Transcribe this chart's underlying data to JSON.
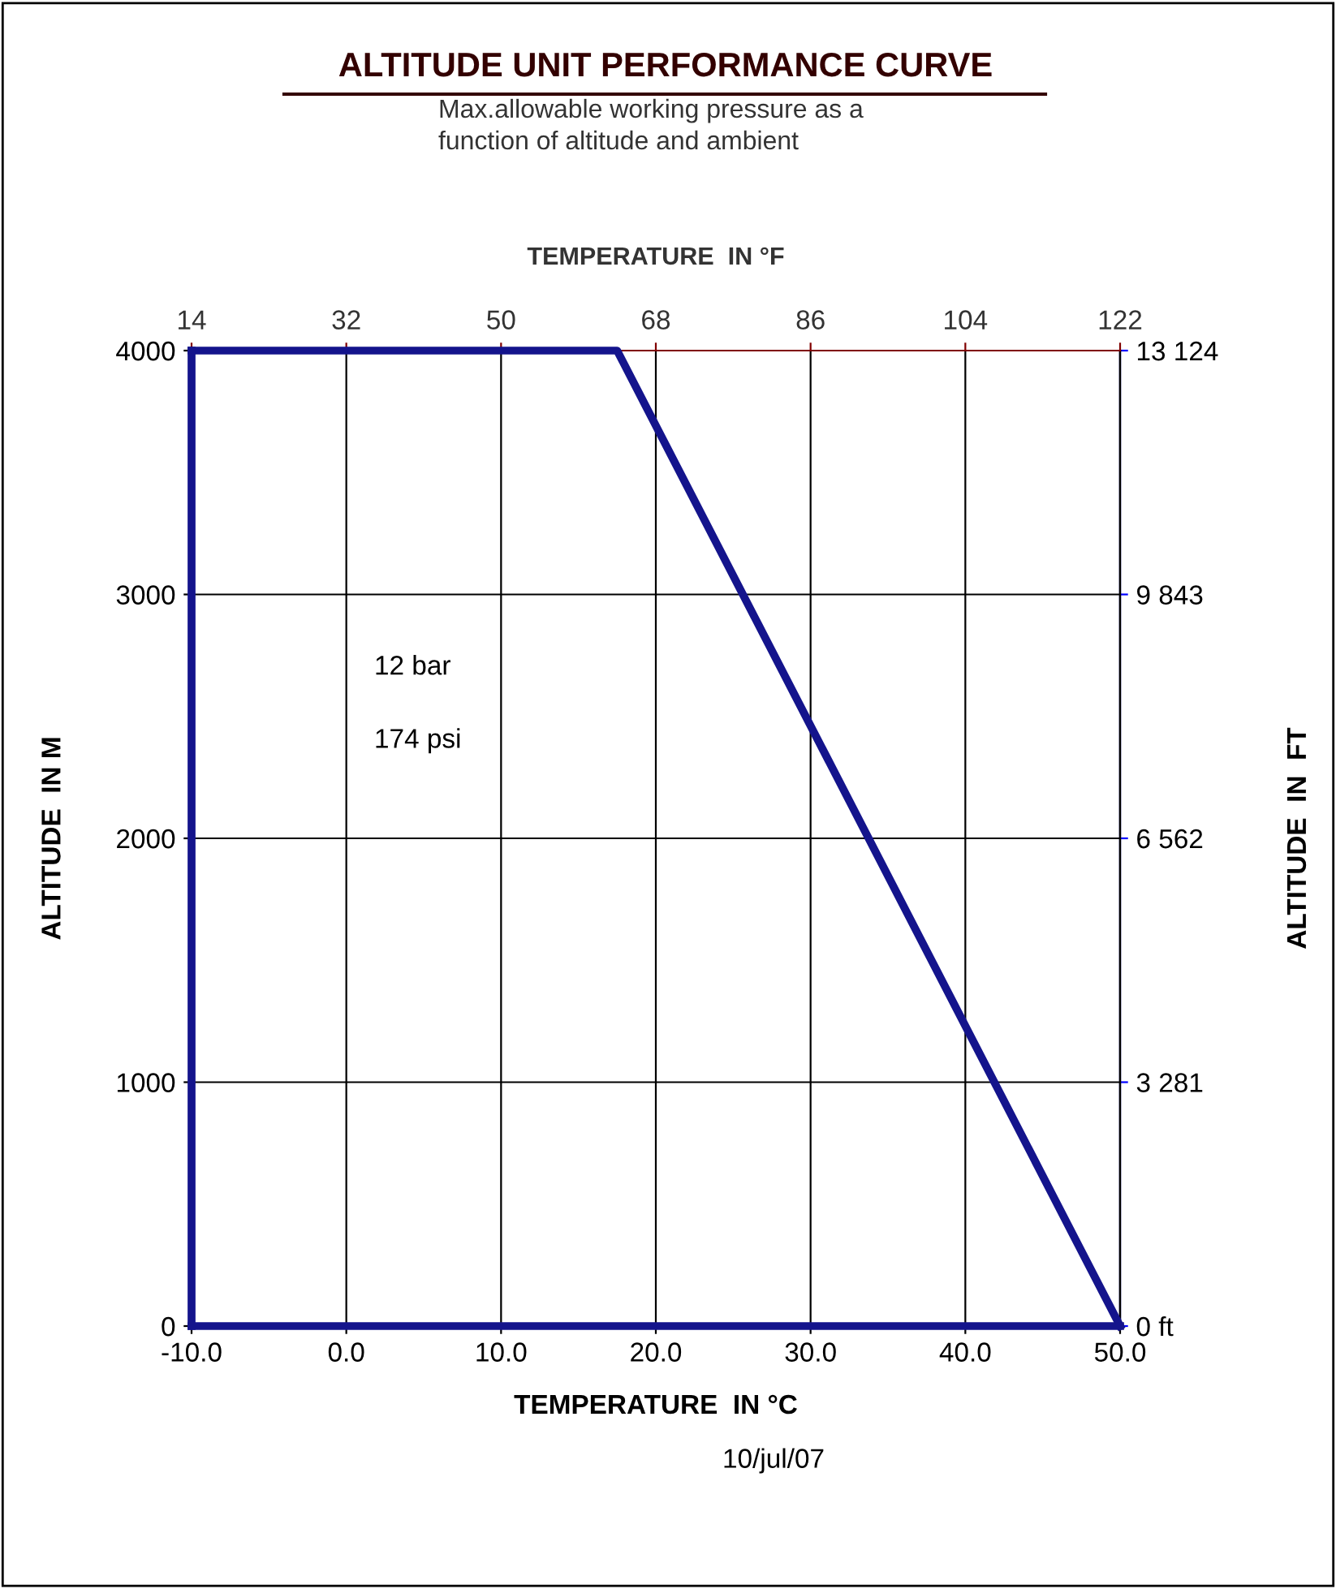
{
  "chart_data": {
    "type": "line",
    "title": "ALTITUDE UNIT PERFORMANCE CURVE",
    "subtitle": "Max.allowable working pressure as a\nfunction of altitude and ambient",
    "xlabel": "TEMPERATURE  IN °C",
    "ylabel": "ALTITUDE  IN M",
    "y2label": "ALTITUDE  IN  FT",
    "x2label": "TEMPERATURE  IN °F",
    "series": [
      {
        "color": "#14148c",
        "x": [
          -10,
          17.5,
          50
        ],
        "values": [
          4000,
          4000,
          0
        ]
      },
      {
        "color": "#14148c",
        "x": [
          -10,
          -10
        ],
        "values": [
          0,
          4000
        ]
      },
      {
        "color": "#14148c",
        "x": [
          -10,
          50
        ],
        "values": [
          0,
          0
        ]
      }
    ],
    "xlim": [
      -10,
      50
    ],
    "xticks": [
      {
        "value": -10,
        "label": "-10.0"
      },
      {
        "value": 0,
        "label": "0.0"
      },
      {
        "value": 10,
        "label": "10.0"
      },
      {
        "value": 20,
        "label": "20.0"
      },
      {
        "value": 30,
        "label": "30.0"
      },
      {
        "value": 40,
        "label": "40.0"
      },
      {
        "value": 50,
        "label": "50.0"
      }
    ],
    "ylim": [
      0,
      4000
    ],
    "yticks": [
      0,
      1000,
      2000,
      3000,
      4000
    ],
    "x2lim": [
      14,
      122
    ],
    "x2ticks": [
      14,
      32,
      50,
      68,
      86,
      104,
      122
    ],
    "y2lim": [
      0,
      13124
    ],
    "y2ticks": [
      {
        "value": 0,
        "label": "0 ft"
      },
      {
        "value": 3281,
        "label": "3 281"
      },
      {
        "value": 6562,
        "label": "6 562"
      },
      {
        "value": 9843,
        "label": "9 843"
      },
      {
        "value": 13124,
        "label": "13 124"
      }
    ],
    "grid": true,
    "marker": "none",
    "line_style": "solid",
    "annotations": [
      "12 bar",
      "174 psi",
      "10/jul/07"
    ]
  }
}
